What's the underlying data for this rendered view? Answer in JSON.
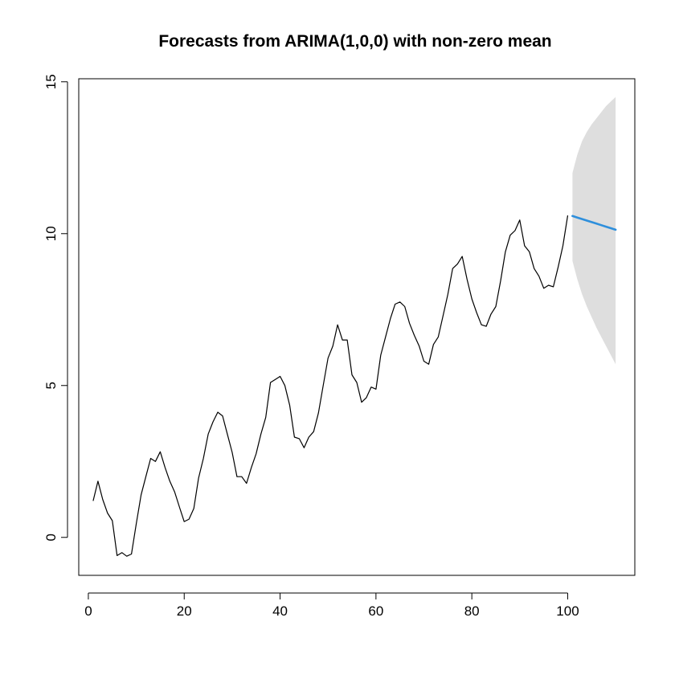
{
  "chart_data": {
    "type": "line",
    "title": "Forecasts from ARIMA(1,0,0) with non-zero mean",
    "xlabel": "",
    "ylabel": "",
    "xlim": [
      -2,
      114
    ],
    "ylim": [
      -1.25,
      15.1
    ],
    "x_ticks": [
      0,
      20,
      40,
      60,
      80,
      100
    ],
    "y_ticks": [
      0,
      5,
      10,
      15
    ],
    "x_tick_labels": [
      "0",
      "20",
      "40",
      "60",
      "80",
      "100"
    ],
    "y_tick_labels": [
      "0",
      "5",
      "10",
      "15"
    ],
    "grid": false,
    "legend": "none",
    "colors": {
      "series": "#000000",
      "forecast": "#2e8fdc",
      "interval": "#dedede",
      "frame": "#000000"
    },
    "series": [
      {
        "role": "observed",
        "x": [
          1,
          2,
          3,
          4,
          5,
          6,
          7,
          8,
          9,
          10,
          11,
          12,
          13,
          14,
          15,
          16,
          17,
          18,
          19,
          20,
          21,
          22,
          23,
          24,
          25,
          26,
          27,
          28,
          29,
          30,
          31,
          32,
          33,
          34,
          35,
          36,
          37,
          38,
          39,
          40,
          41,
          42,
          43,
          44,
          45,
          46,
          47,
          48,
          49,
          50,
          51,
          52,
          53,
          54,
          55,
          56,
          57,
          58,
          59,
          60,
          61,
          62,
          63,
          64,
          65,
          66,
          67,
          68,
          69,
          70,
          71,
          72,
          73,
          74,
          75,
          76,
          77,
          78,
          79,
          80,
          81,
          82,
          83,
          84,
          85,
          86,
          87,
          88,
          89,
          90,
          91,
          92,
          93,
          94,
          95,
          96,
          97,
          98,
          99,
          100
        ],
        "values": [
          1.2,
          1.85,
          1.25,
          0.8,
          0.55,
          -0.6,
          -0.5,
          -0.62,
          -0.55,
          0.45,
          1.4,
          2.0,
          2.6,
          2.5,
          2.82,
          2.3,
          1.85,
          1.5,
          1.0,
          0.52,
          0.6,
          0.95,
          1.95,
          2.6,
          3.4,
          3.8,
          4.12,
          4.0,
          3.4,
          2.8,
          2.0,
          2.0,
          1.78,
          2.3,
          2.75,
          3.4,
          3.95,
          5.1,
          5.2,
          5.3,
          5.0,
          4.35,
          3.3,
          3.25,
          2.95,
          3.3,
          3.48,
          4.1,
          5.0,
          5.9,
          6.3,
          7.0,
          6.5,
          6.5,
          5.35,
          5.1,
          4.45,
          4.6,
          4.95,
          4.88,
          6.0,
          6.6,
          7.2,
          7.68,
          7.75,
          7.6,
          7.05,
          6.65,
          6.3,
          5.8,
          5.7,
          6.35,
          6.6,
          7.3,
          8.0,
          8.85,
          9.0,
          9.25,
          8.5,
          7.85,
          7.4,
          7.0,
          6.95,
          7.35,
          7.6,
          8.45,
          9.4,
          9.95,
          10.1,
          10.45,
          9.6,
          9.4,
          8.85,
          8.6,
          8.2,
          8.3,
          8.25,
          8.9,
          9.6,
          10.6
        ]
      },
      {
        "role": "forecast",
        "x": [
          101,
          102,
          103,
          104,
          105,
          106,
          107,
          108,
          109,
          110
        ],
        "values": [
          10.58,
          10.53,
          10.48,
          10.43,
          10.38,
          10.33,
          10.28,
          10.23,
          10.18,
          10.13
        ],
        "lower": [
          9.1,
          8.5,
          8.0,
          7.6,
          7.25,
          6.9,
          6.6,
          6.3,
          6.0,
          5.7
        ],
        "upper": [
          12.0,
          12.6,
          13.05,
          13.35,
          13.6,
          13.8,
          14.0,
          14.2,
          14.35,
          14.5
        ]
      }
    ]
  }
}
